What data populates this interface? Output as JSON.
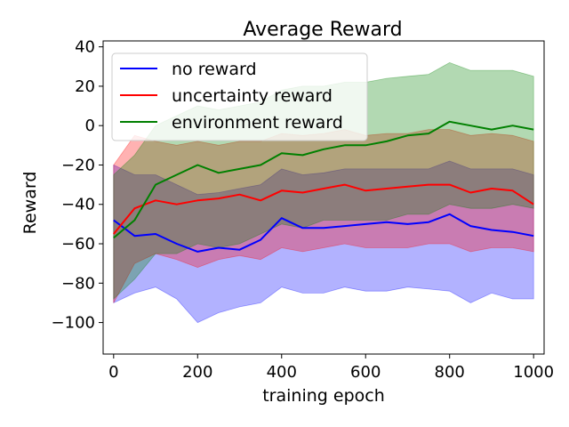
{
  "chart_data": {
    "type": "line",
    "title": "Average Reward",
    "xlabel": "training epoch",
    "ylabel": "Reward",
    "xlim": [
      -25,
      1025
    ],
    "ylim": [
      -116,
      43
    ],
    "xticks": [
      0,
      200,
      400,
      600,
      800,
      1000
    ],
    "xtick_labels": [
      "0",
      "200",
      "400",
      "600",
      "800",
      "1000"
    ],
    "yticks": [
      -100,
      -80,
      -60,
      -40,
      -20,
      0,
      20,
      40
    ],
    "ytick_labels": [
      "−100",
      "−80",
      "−60",
      "−40",
      "−20",
      "0",
      "20",
      "40"
    ],
    "grid": false,
    "legend_position": "top-left",
    "x": [
      0,
      50,
      100,
      150,
      200,
      250,
      300,
      350,
      400,
      450,
      500,
      550,
      600,
      650,
      700,
      750,
      800,
      850,
      900,
      950,
      1000
    ],
    "series": [
      {
        "name": "no reward",
        "color": "#0000ff",
        "mean": [
          -48,
          -56,
          -55,
          -60,
          -64,
          -62,
          -63,
          -58,
          -47,
          -52,
          -52,
          -51,
          -50,
          -49,
          -50,
          -49,
          -45,
          -51,
          -53,
          -54,
          -56
        ],
        "lower": [
          -90,
          -85,
          -82,
          -88,
          -100,
          -95,
          -92,
          -90,
          -82,
          -85,
          -85,
          -82,
          -84,
          -84,
          -82,
          -83,
          -84,
          -90,
          -85,
          -88,
          -88
        ],
        "upper": [
          -20,
          -25,
          -25,
          -30,
          -35,
          -34,
          -32,
          -30,
          -22,
          -25,
          -24,
          -22,
          -22,
          -22,
          -22,
          -22,
          -18,
          -22,
          -22,
          -22,
          -25
        ]
      },
      {
        "name": "uncertainty reward",
        "color": "#ff0000",
        "mean": [
          -55,
          -42,
          -38,
          -40,
          -38,
          -37,
          -35,
          -38,
          -33,
          -34,
          -32,
          -30,
          -33,
          -32,
          -31,
          -30,
          -30,
          -34,
          -32,
          -33,
          -40
        ],
        "lower": [
          -90,
          -70,
          -65,
          -68,
          -72,
          -68,
          -66,
          -68,
          -62,
          -64,
          -62,
          -60,
          -62,
          -62,
          -62,
          -60,
          -60,
          -64,
          -62,
          -62,
          -64
        ],
        "upper": [
          -20,
          -5,
          -8,
          -10,
          -8,
          -10,
          -8,
          -8,
          -4,
          -5,
          -4,
          -2,
          -5,
          -4,
          -4,
          -2,
          -2,
          -5,
          -4,
          -5,
          -8
        ]
      },
      {
        "name": "environment reward",
        "color": "#008000",
        "mean": [
          -57,
          -48,
          -30,
          -25,
          -20,
          -24,
          -22,
          -20,
          -14,
          -15,
          -12,
          -10,
          -10,
          -8,
          -5,
          -4,
          2,
          0,
          -2,
          0,
          -2
        ],
        "lower": [
          -88,
          -78,
          -65,
          -65,
          -60,
          -62,
          -60,
          -55,
          -50,
          -52,
          -48,
          -48,
          -48,
          -48,
          -45,
          -45,
          -40,
          -42,
          -42,
          -40,
          -42
        ],
        "upper": [
          -25,
          -15,
          0,
          5,
          10,
          8,
          10,
          12,
          18,
          20,
          20,
          22,
          22,
          24,
          25,
          26,
          32,
          28,
          28,
          28,
          25
        ]
      }
    ]
  }
}
